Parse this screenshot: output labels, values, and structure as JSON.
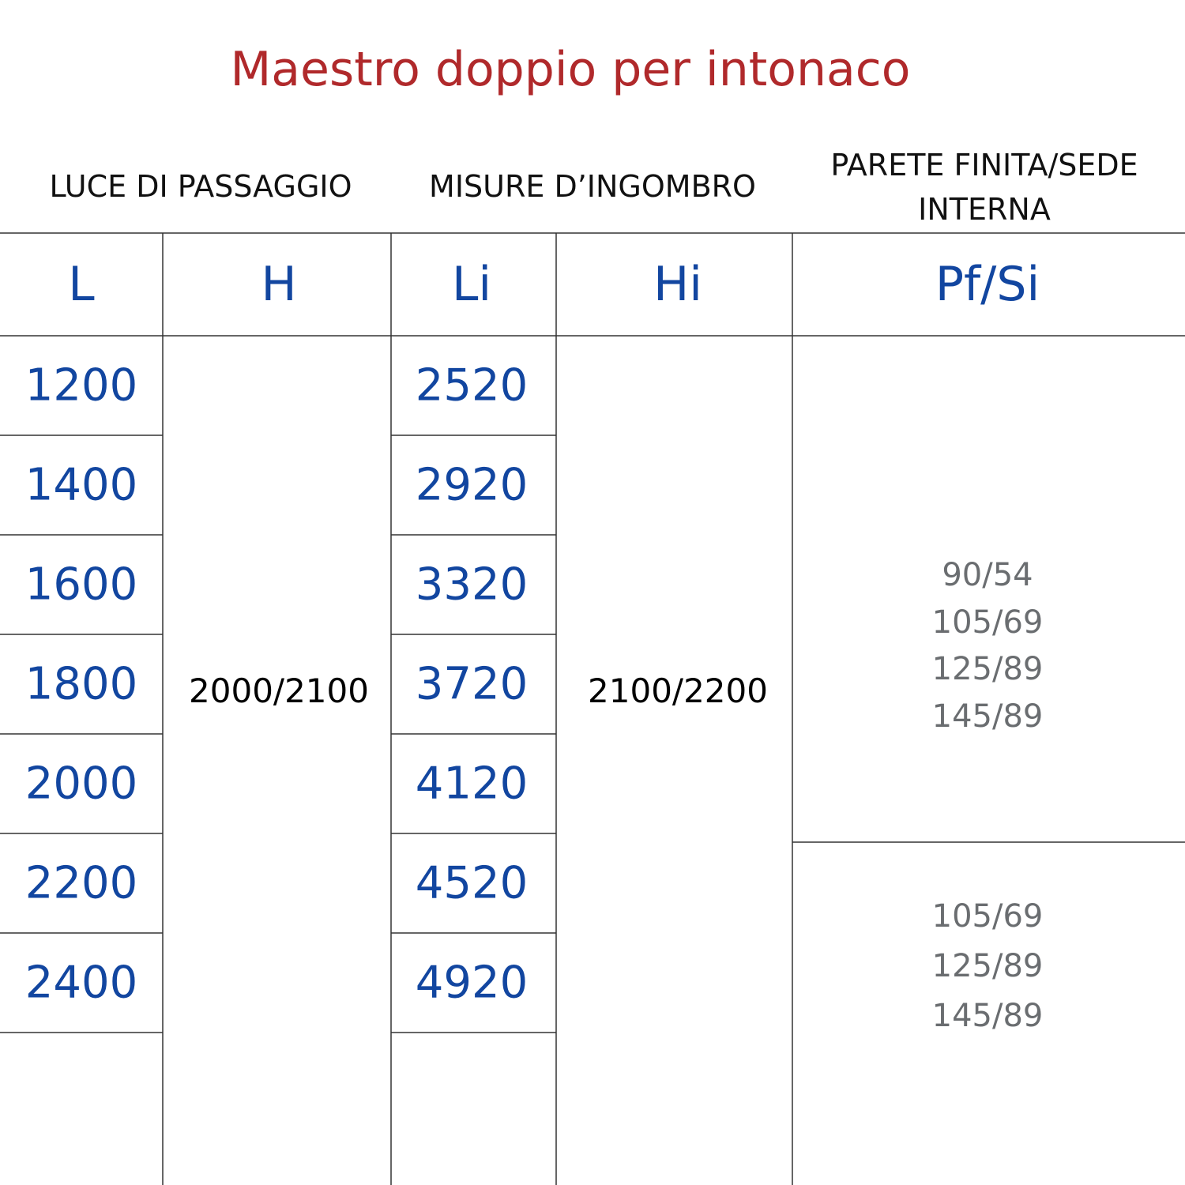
{
  "title": "Maestro doppio per intonaco",
  "group_headers": [
    "LUCE DI PASSAGGIO",
    "MISURE D’INGOMBRO",
    "PARETE FINITA/SEDE INTERNA"
  ],
  "table": {
    "columns": [
      "L",
      "H",
      "Li",
      "Hi",
      "Pf/Si"
    ],
    "L": [
      "1200",
      "1400",
      "1600",
      "1800",
      "2000",
      "2200",
      "2400"
    ],
    "H": "2000/2100",
    "Li": [
      "2520",
      "2920",
      "3320",
      "3720",
      "4120",
      "4520",
      "4920"
    ],
    "Hi": "2100/2200",
    "Pf_Si": [
      [
        "90/54",
        "105/69",
        "125/89",
        "145/89"
      ],
      [
        "105/69",
        "125/89",
        "145/89"
      ]
    ]
  }
}
